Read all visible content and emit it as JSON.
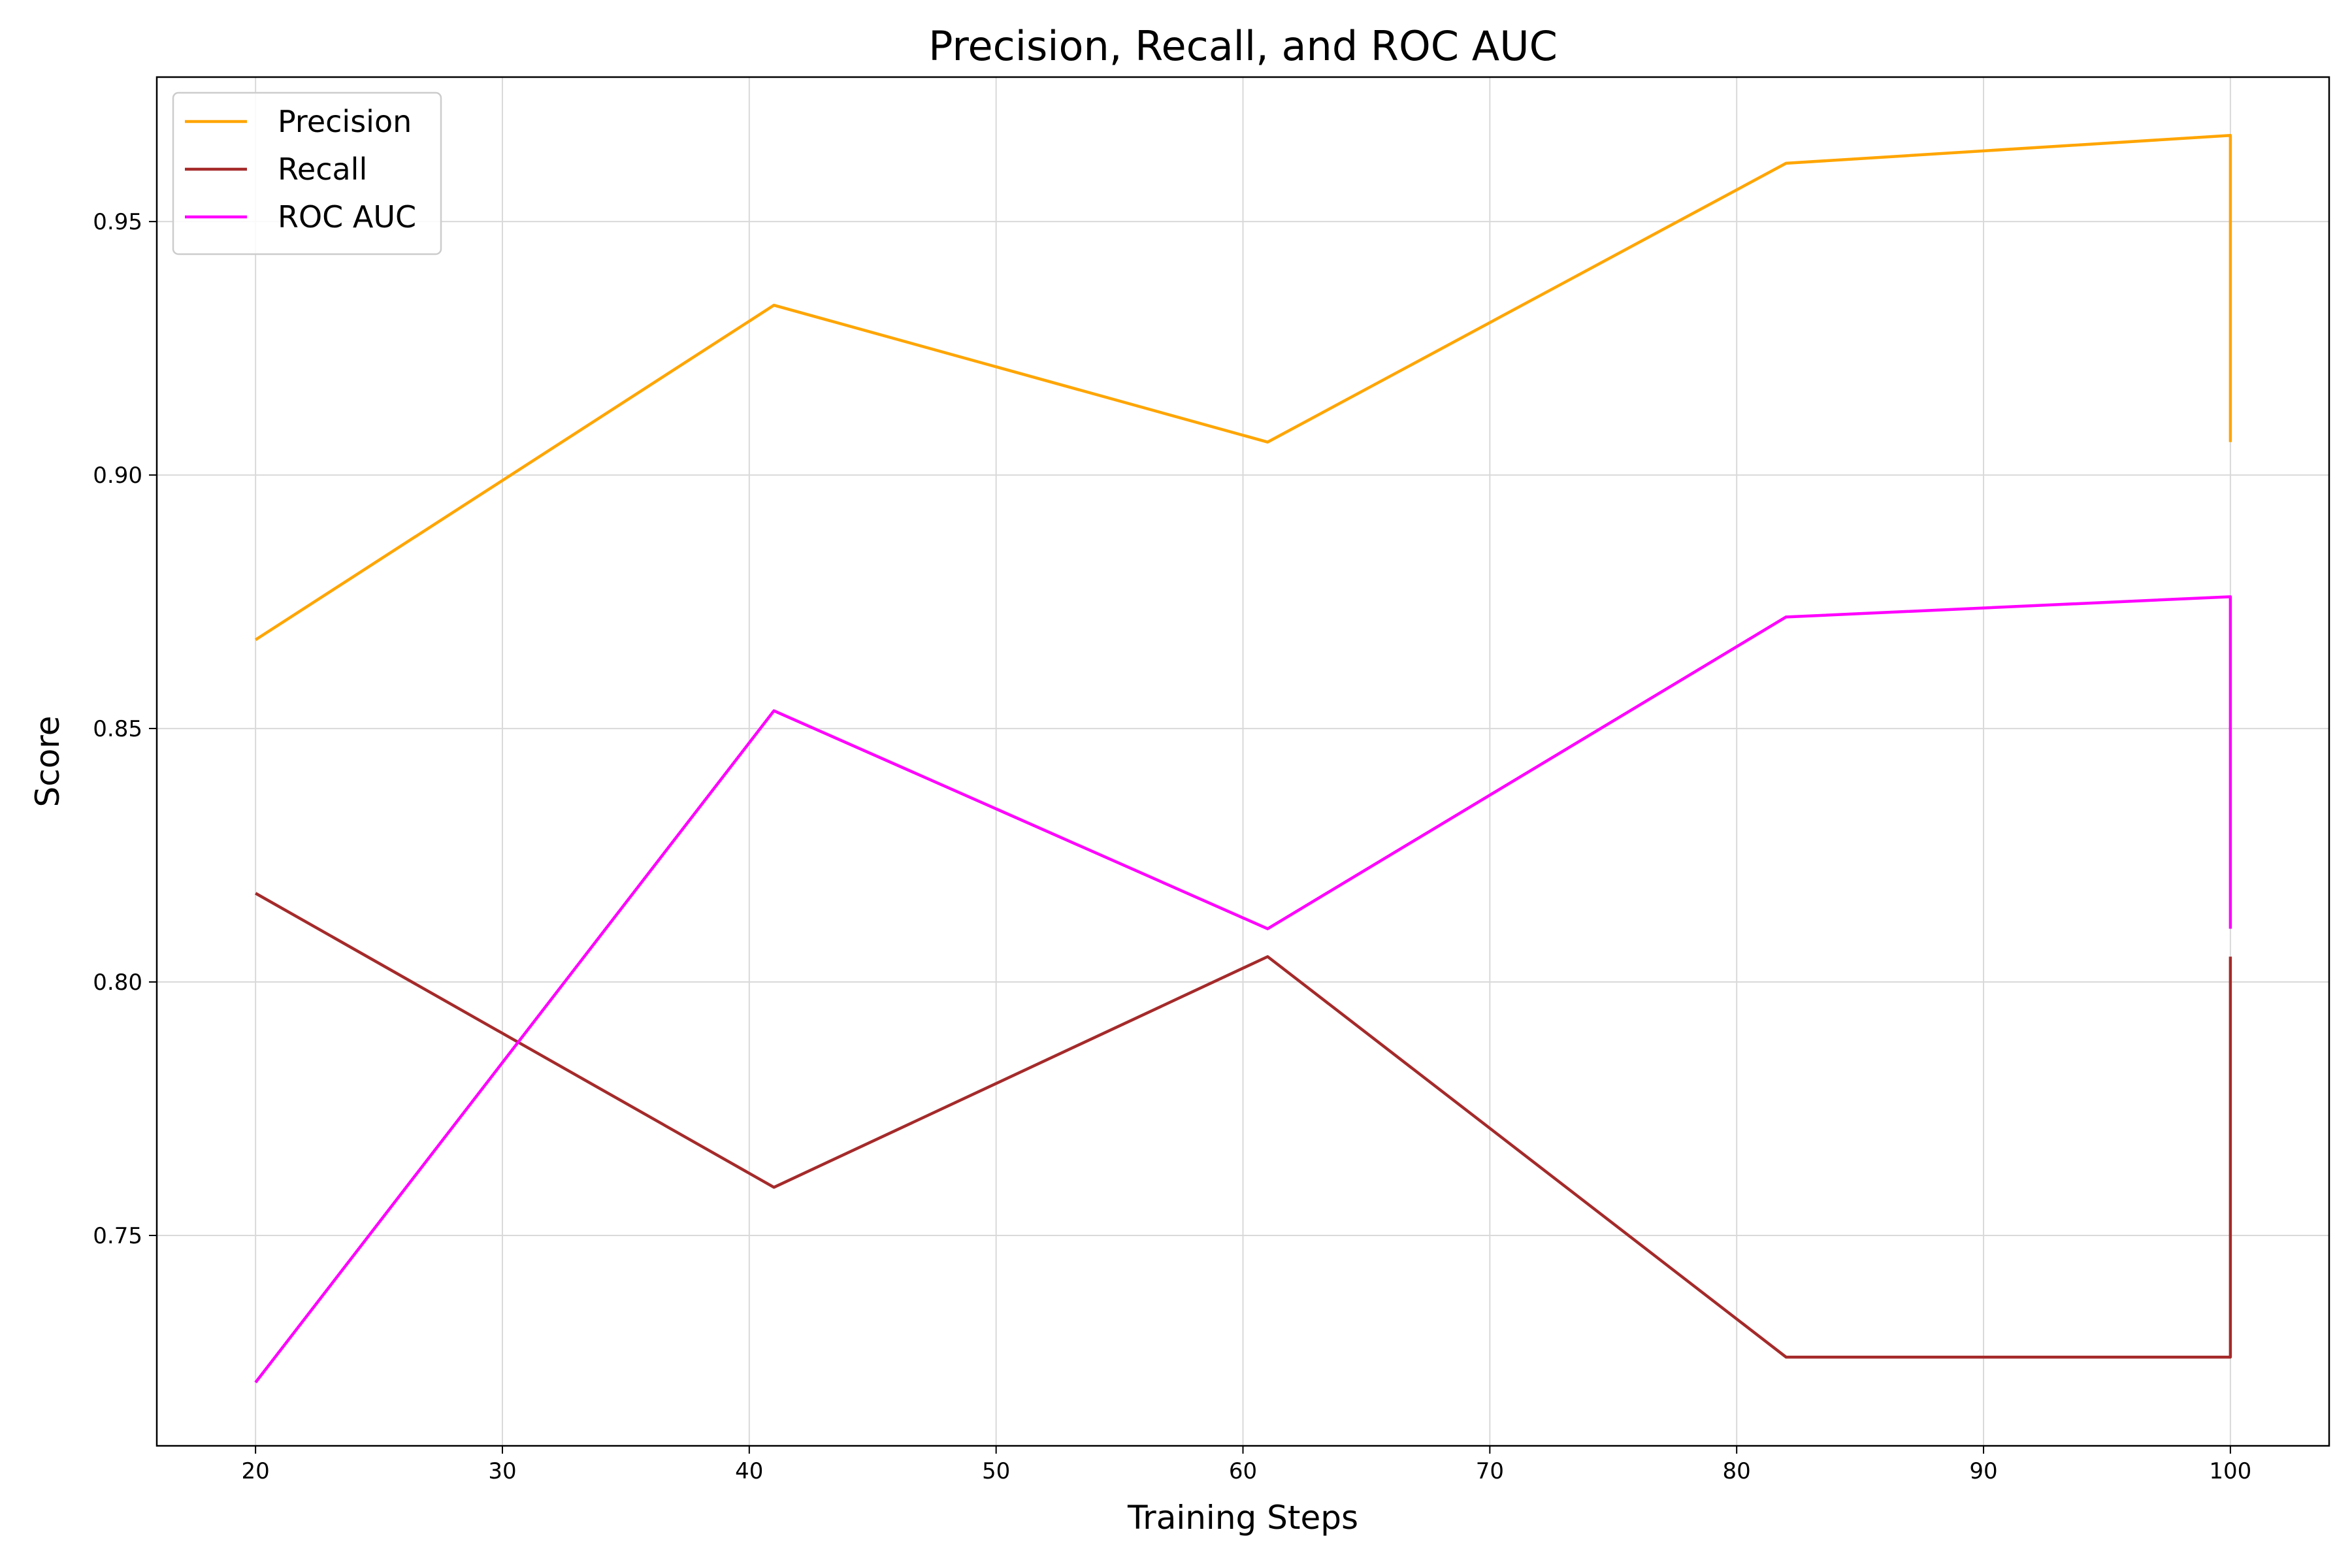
{
  "chart_data": {
    "type": "line",
    "title": "Precision, Recall, and ROC AUC",
    "xlabel": "Training Steps",
    "ylabel": "Score",
    "xlim": [
      16,
      104
    ],
    "ylim": [
      0.7085,
      0.9785
    ],
    "x_ticks": [
      20,
      30,
      40,
      50,
      60,
      70,
      80,
      90,
      100
    ],
    "y_ticks": [
      0.75,
      0.8,
      0.85,
      0.9,
      0.95
    ],
    "x_tick_labels": [
      "20",
      "30",
      "40",
      "50",
      "60",
      "70",
      "80",
      "90",
      "100"
    ],
    "y_tick_labels": [
      "0.75",
      "0.80",
      "0.85",
      "0.90",
      "0.95"
    ],
    "grid": true,
    "legend_position": "top-left",
    "series": [
      {
        "name": "Precision",
        "color": "#FFA500",
        "x": [
          20,
          41,
          61,
          82,
          100,
          100
        ],
        "y": [
          0.8675,
          0.9335,
          0.9065,
          0.9615,
          0.967,
          0.9065
        ]
      },
      {
        "name": "Recall",
        "color": "#A52A2A",
        "x": [
          20,
          41,
          61,
          82,
          100,
          100
        ],
        "y": [
          0.8175,
          0.7595,
          0.805,
          0.726,
          0.726,
          0.805
        ]
      },
      {
        "name": "ROC AUC",
        "color": "#FF00FF",
        "x": [
          20,
          41,
          61,
          82,
          100,
          100
        ],
        "y": [
          0.721,
          0.8535,
          0.8105,
          0.872,
          0.876,
          0.8105
        ]
      }
    ]
  }
}
